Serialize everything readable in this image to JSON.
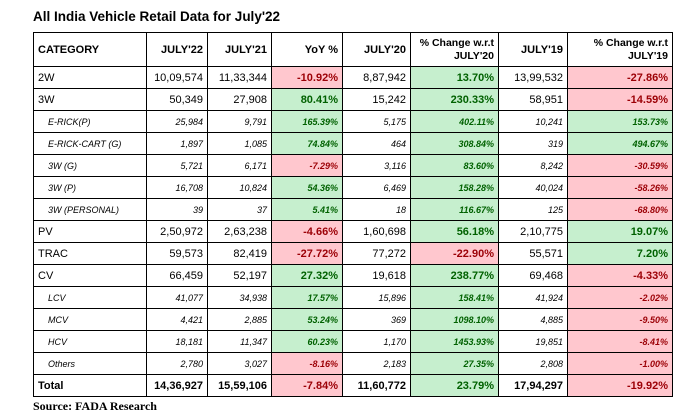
{
  "title": "All India Vehicle Retail Data for July'22",
  "table": {
    "header": [
      "CATEGORY",
      "JULY'22",
      "JULY'21",
      "YoY %",
      "JULY'20",
      "% Change w.r.t JULY'20",
      "JULY'19",
      "% Change w.r.t JULY'19"
    ],
    "rows": [
      [
        "2W",
        "10,09,574",
        "11,33,344",
        "-10.92%",
        "8,87,942",
        "13.70%",
        "13,99,532",
        "-27.86%"
      ],
      [
        "3W",
        "50,349",
        "27,908",
        "80.41%",
        "15,242",
        "230.33%",
        "58,951",
        "-14.59%"
      ],
      [
        "E-RICK(P)",
        "25,984",
        "9,791",
        "165.39%",
        "5,175",
        "402.11%",
        "10,241",
        "153.73%"
      ],
      [
        "E-RICK-CART (G)",
        "1,897",
        "1,085",
        "74.84%",
        "464",
        "308.84%",
        "319",
        "494.67%"
      ],
      [
        "3W (G)",
        "5,721",
        "6,171",
        "-7.29%",
        "3,116",
        "83.60%",
        "8,242",
        "-30.59%"
      ],
      [
        "3W (P)",
        "16,708",
        "10,824",
        "54.36%",
        "6,469",
        "158.28%",
        "40,024",
        "-58.26%"
      ],
      [
        "3W (PERSONAL)",
        "39",
        "37",
        "5.41%",
        "18",
        "116.67%",
        "125",
        "-68.80%"
      ],
      [
        "PV",
        "2,50,972",
        "2,63,238",
        "-4.66%",
        "1,60,698",
        "56.18%",
        "2,10,775",
        "19.07%"
      ],
      [
        "TRAC",
        "59,573",
        "82,419",
        "-27.72%",
        "77,272",
        "-22.90%",
        "55,571",
        "7.20%"
      ],
      [
        "CV",
        "66,459",
        "52,197",
        "27.32%",
        "19,618",
        "238.77%",
        "69,468",
        "-4.33%"
      ],
      [
        "LCV",
        "41,077",
        "34,938",
        "17.57%",
        "15,896",
        "158.41%",
        "41,924",
        "-2.02%"
      ],
      [
        "MCV",
        "4,421",
        "2,885",
        "53.24%",
        "369",
        "1098.10%",
        "4,885",
        "-9.50%"
      ],
      [
        "HCV",
        "18,181",
        "11,347",
        "60.23%",
        "1,170",
        "1453.93%",
        "19,851",
        "-8.41%"
      ],
      [
        "Others",
        "2,780",
        "3,027",
        "-8.16%",
        "2,183",
        "27.35%",
        "2,808",
        "-1.00%"
      ],
      [
        "Total",
        "14,36,927",
        "15,59,106",
        "-7.84%",
        "11,60,772",
        "23.79%",
        "17,94,297",
        "-19.92%"
      ]
    ]
  },
  "source": "Source: FADA Research"
}
